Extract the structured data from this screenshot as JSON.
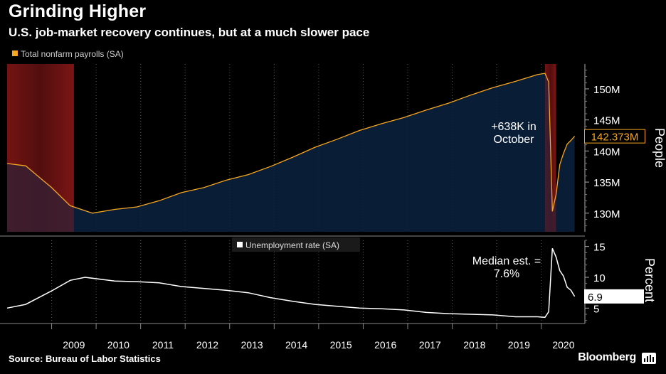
{
  "title": "Grinding Higher",
  "subtitle": "U.S. job-market recovery continues, but at a much slower pace",
  "source": "Source: Bureau of Labor Statistics",
  "brand": "Bloomberg",
  "colors": {
    "payrolls": "#f5a623",
    "area": "#0b2240",
    "recession": "#8b1a1a",
    "unemployment": "#ffffff",
    "background": "#000000"
  },
  "chart_data": [
    {
      "type": "area",
      "legend": "Total nonfarm payrolls (SA)",
      "ylabel": "People",
      "yticks": [
        "130M",
        "135M",
        "140M",
        "145M",
        "150M"
      ],
      "ylim": [
        127,
        154
      ],
      "last_value_label": "142.373M",
      "annotation": [
        "+638K in",
        "October"
      ],
      "recessions": [
        [
          "2008-01",
          "2009-06"
        ],
        [
          "2020-02",
          "2020-04"
        ]
      ],
      "series": [
        {
          "name": "Total nonfarm payrolls (SA)",
          "x": [
            "2008-01",
            "2008-06",
            "2009-01",
            "2009-06",
            "2009-12",
            "2010-06",
            "2010-12",
            "2011-06",
            "2011-12",
            "2012-06",
            "2012-12",
            "2013-06",
            "2013-12",
            "2014-06",
            "2014-12",
            "2015-06",
            "2015-12",
            "2016-06",
            "2016-12",
            "2017-06",
            "2017-12",
            "2018-06",
            "2018-12",
            "2019-06",
            "2019-12",
            "2020-02",
            "2020-03",
            "2020-04",
            "2020-05",
            "2020-06",
            "2020-07",
            "2020-08",
            "2020-09",
            "2020-10"
          ],
          "values": [
            138.0,
            137.6,
            134.1,
            131.2,
            130.0,
            130.6,
            131.0,
            132.0,
            133.3,
            134.1,
            135.3,
            136.2,
            137.5,
            139.0,
            140.6,
            141.9,
            143.3,
            144.4,
            145.4,
            146.6,
            147.7,
            149.0,
            150.2,
            151.2,
            152.3,
            152.5,
            151.1,
            130.3,
            133.0,
            137.8,
            139.6,
            141.1,
            141.7,
            142.373
          ]
        }
      ]
    },
    {
      "type": "line",
      "legend": "Unemployment rate (SA)",
      "ylabel": "Percent",
      "yticks": [
        "5",
        "10",
        "15"
      ],
      "ylim": [
        2.5,
        16
      ],
      "last_value_label": "6.9",
      "annotation": [
        "Median est. =",
        "7.6%"
      ],
      "x_tick_labels": [
        "2009",
        "2010",
        "2011",
        "2012",
        "2013",
        "2014",
        "2015",
        "2016",
        "2017",
        "2018",
        "2019",
        "2020"
      ],
      "series": [
        {
          "name": "Unemployment rate (SA)",
          "x": [
            "2008-01",
            "2008-06",
            "2009-01",
            "2009-06",
            "2009-10",
            "2010-06",
            "2010-12",
            "2011-06",
            "2011-12",
            "2012-06",
            "2012-12",
            "2013-06",
            "2013-12",
            "2014-06",
            "2014-12",
            "2015-06",
            "2015-12",
            "2016-06",
            "2016-12",
            "2017-06",
            "2017-12",
            "2018-06",
            "2018-12",
            "2019-06",
            "2019-12",
            "2020-02",
            "2020-03",
            "2020-04",
            "2020-05",
            "2020-06",
            "2020-07",
            "2020-08",
            "2020-09",
            "2020-10"
          ],
          "values": [
            5.0,
            5.6,
            7.8,
            9.5,
            10.0,
            9.4,
            9.3,
            9.1,
            8.5,
            8.2,
            7.9,
            7.5,
            6.7,
            6.1,
            5.6,
            5.3,
            5.0,
            4.9,
            4.7,
            4.3,
            4.1,
            4.0,
            3.9,
            3.6,
            3.6,
            3.5,
            4.4,
            14.7,
            13.3,
            11.1,
            10.2,
            8.4,
            7.9,
            6.9
          ]
        }
      ]
    }
  ]
}
